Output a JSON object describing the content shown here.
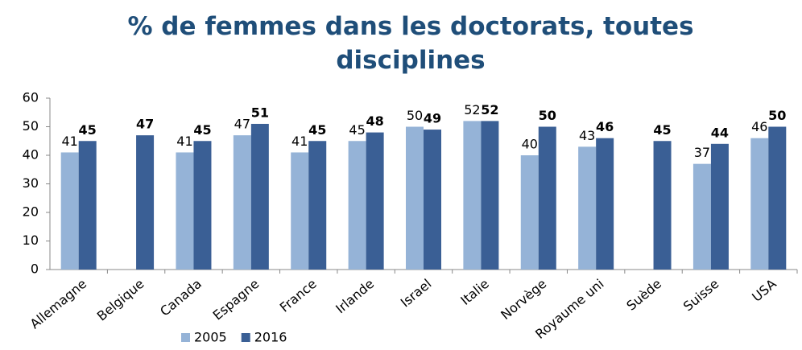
{
  "chart_data": {
    "type": "bar",
    "title": "% de femmes dans les doctorats, toutes disciplines",
    "categories": [
      "Allemagne",
      "Belgique",
      "Canada",
      "Espagne",
      "France",
      "Irlande",
      "Israel",
      "Italie",
      "Norvège",
      "Royaume uni",
      "Suède",
      "Suisse",
      "USA"
    ],
    "series": [
      {
        "name": "2005",
        "color": "#95b3d7",
        "values": [
          41,
          null,
          41,
          47,
          41,
          45,
          50,
          52,
          40,
          43,
          null,
          37,
          46
        ]
      },
      {
        "name": "2016",
        "color": "#3a5f95",
        "values": [
          45,
          47,
          45,
          51,
          45,
          48,
          49,
          52,
          50,
          46,
          45,
          44,
          50
        ]
      }
    ],
    "ylim": [
      0,
      60
    ],
    "yticks": [
      0,
      10,
      20,
      30,
      40,
      50,
      60
    ],
    "highlight_categories": [
      "Canada"
    ],
    "highlight_color": "#c00000",
    "legend": "bottom"
  }
}
